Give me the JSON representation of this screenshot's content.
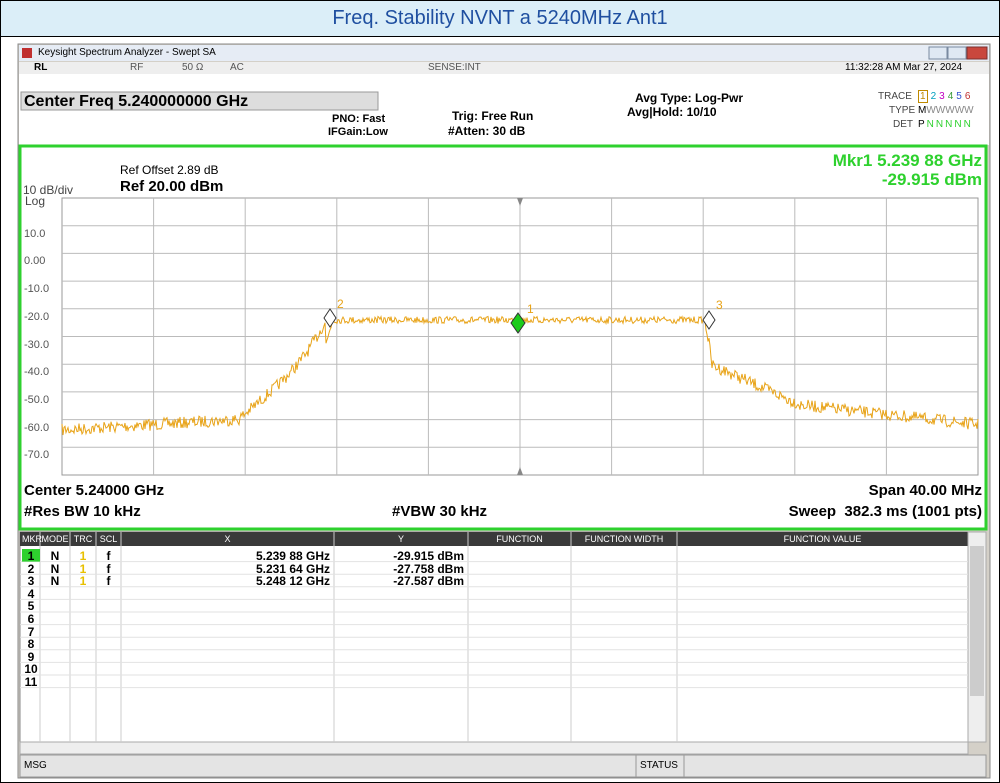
{
  "banner": {
    "title": "Freq. Stability NVNT a 5240MHz Ant1"
  },
  "window": {
    "title": "Keysight Spectrum Analyzer - Swept SA"
  },
  "status_bar": {
    "rl": "RL",
    "rf": "RF",
    "impedance": "50 Ω",
    "coupling": "AC",
    "sense": "SENSE:INT",
    "datetime": "11:32:28 AM Mar 27, 2024"
  },
  "settings": {
    "center_freq": "Center Freq 5.240000000 GHz",
    "pno": "PNO: Fast",
    "ifgain": "IFGain:Low",
    "trig": "Trig: Free Run",
    "atten": "#Atten: 30 dB",
    "avg_type": "Avg Type: Log-Pwr",
    "avg_hold": "Avg|Hold: 10/10",
    "trace_label": "TRACE",
    "trace_numbers": [
      "1",
      "2",
      "3",
      "4",
      "5",
      "6"
    ],
    "type_label": "TYPE",
    "type_values": [
      "M",
      "W",
      "W",
      "W",
      "W",
      "W"
    ],
    "det_label": "DET",
    "det_values": [
      "P",
      "N",
      "N",
      "N",
      "N",
      "N"
    ]
  },
  "plot": {
    "ref_offset": "Ref Offset 2.89 dB",
    "ref_level": "Ref 20.00 dBm",
    "scale": "10 dB/div",
    "scale_type": "Log",
    "marker_readout_freq": "Mkr1 5.239 88 GHz",
    "marker_readout_level": "-29.915 dBm",
    "y_labels": [
      "10.0",
      "0.00",
      "-10.0",
      "-20.0",
      "-30.0",
      "-40.0",
      "-50.0",
      "-60.0",
      "-70.0"
    ],
    "marker_labels": [
      "2",
      "1",
      "3"
    ],
    "center": "Center 5.24000 GHz",
    "rbw": "#Res BW 10 kHz",
    "vbw": "#VBW 30 kHz",
    "span": "Span 40.00 MHz",
    "sweep": "Sweep  382.3 ms (1001 pts)"
  },
  "marker_table": {
    "headers": [
      "MKR",
      "MODE",
      "TRC",
      "SCL",
      "X",
      "Y",
      "FUNCTION",
      "FUNCTION WIDTH",
      "FUNCTION VALUE"
    ],
    "rows": [
      {
        "mkr": "1",
        "mode": "N",
        "trc": "1",
        "scl": "f",
        "x": "5.239 88 GHz",
        "y": "-29.915 dBm"
      },
      {
        "mkr": "2",
        "mode": "N",
        "trc": "1",
        "scl": "f",
        "x": "5.231 64 GHz",
        "y": "-27.758 dBm"
      },
      {
        "mkr": "3",
        "mode": "N",
        "trc": "1",
        "scl": "f",
        "x": "5.248 12 GHz",
        "y": "-27.587 dBm"
      },
      {
        "mkr": "4"
      },
      {
        "mkr": "5"
      },
      {
        "mkr": "6"
      },
      {
        "mkr": "7"
      },
      {
        "mkr": "8"
      },
      {
        "mkr": "9"
      },
      {
        "mkr": "10"
      },
      {
        "mkr": "11"
      }
    ]
  },
  "footer": {
    "msg": "MSG",
    "status": "STATUS"
  }
}
